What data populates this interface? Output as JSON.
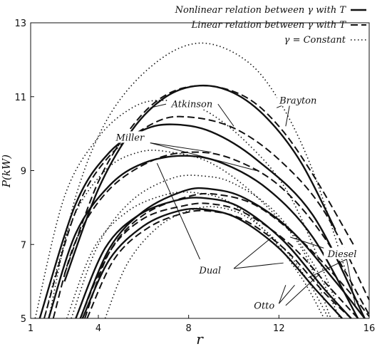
{
  "chart_data": {
    "type": "line",
    "title": "",
    "xlabel": "r",
    "ylabel": "P(kW)",
    "xlim": [
      1,
      16
    ],
    "ylim": [
      5,
      13
    ],
    "xticks": [
      1,
      4,
      8,
      12,
      16
    ],
    "yticks": [
      5,
      7,
      9,
      11,
      13
    ],
    "grid": false,
    "legend_position": "top-right",
    "legend": [
      {
        "label": "Nonlinear relation between γ with T",
        "style": "solid"
      },
      {
        "label": "Linear relation between γ with T",
        "style": "dashed"
      },
      {
        "label": "γ = Constant",
        "style": "dotted"
      }
    ],
    "series": [
      {
        "cycle": "Brayton",
        "style": "solid",
        "points": [
          [
            2.5,
            6.0
          ],
          [
            4,
            8.5
          ],
          [
            5.5,
            10.1
          ],
          [
            7,
            11.0
          ],
          [
            8.5,
            11.3
          ],
          [
            10,
            11.1
          ],
          [
            11.5,
            10.4
          ],
          [
            13,
            9.2
          ],
          [
            14.5,
            7.4
          ]
        ]
      },
      {
        "cycle": "Brayton",
        "style": "dashed",
        "points": [
          [
            2.5,
            6.2
          ],
          [
            4,
            8.7
          ],
          [
            5.5,
            10.2
          ],
          [
            7,
            11.05
          ],
          [
            8.7,
            11.3
          ],
          [
            10.5,
            11.0
          ],
          [
            12,
            10.2
          ],
          [
            13.5,
            8.9
          ],
          [
            15.3,
            7.0
          ]
        ]
      },
      {
        "cycle": "Brayton",
        "style": "dotted",
        "points": [
          [
            1.8,
            5.0
          ],
          [
            3,
            8.3
          ],
          [
            4.5,
            10.5
          ],
          [
            6.5,
            11.9
          ],
          [
            8.5,
            12.45
          ],
          [
            10.5,
            12.0
          ],
          [
            12,
            10.9
          ],
          [
            13.5,
            9.0
          ],
          [
            15,
            6.2
          ]
        ]
      },
      {
        "cycle": "Atkinson",
        "style": "solid",
        "points": [
          [
            1.4,
            5.0
          ],
          [
            3,
            8.1
          ],
          [
            4.5,
            9.5
          ],
          [
            6,
            10.1
          ],
          [
            7.3,
            10.25
          ],
          [
            9,
            10.05
          ],
          [
            11,
            9.3
          ],
          [
            13.5,
            7.8
          ],
          [
            15.8,
            5.0
          ]
        ]
      },
      {
        "cycle": "Atkinson",
        "style": "dashed",
        "points": [
          [
            1.6,
            5.0
          ],
          [
            3,
            7.9
          ],
          [
            4.5,
            9.4
          ],
          [
            6.5,
            10.3
          ],
          [
            8,
            10.45
          ],
          [
            10,
            10.15
          ],
          [
            12,
            9.3
          ],
          [
            14,
            7.9
          ],
          [
            16,
            5.5
          ]
        ]
      },
      {
        "cycle": "Atkinson",
        "style": "dotted",
        "points": [
          [
            1.2,
            5.0
          ],
          [
            2.5,
            8.3
          ],
          [
            4,
            9.9
          ],
          [
            5.5,
            10.7
          ],
          [
            6.8,
            10.9
          ],
          [
            8.5,
            10.7
          ],
          [
            10.5,
            9.8
          ],
          [
            12.5,
            8.3
          ],
          [
            14.5,
            5.5
          ]
        ]
      },
      {
        "cycle": "Miller",
        "style": "solid",
        "points": [
          [
            1.8,
            5.0
          ],
          [
            3,
            7.3
          ],
          [
            4.5,
            8.6
          ],
          [
            6,
            9.2
          ],
          [
            7.8,
            9.4
          ],
          [
            9.5,
            9.2
          ],
          [
            11.5,
            8.5
          ],
          [
            13.5,
            7.2
          ],
          [
            15.5,
            5.0
          ]
        ]
      },
      {
        "cycle": "Miller",
        "style": "dashed",
        "points": [
          [
            2.0,
            5.0
          ],
          [
            3,
            7.1
          ],
          [
            4.5,
            8.5
          ],
          [
            6.5,
            9.3
          ],
          [
            8.3,
            9.5
          ],
          [
            10,
            9.3
          ],
          [
            12,
            8.6
          ],
          [
            14,
            7.2
          ],
          [
            16,
            5.1
          ]
        ]
      },
      {
        "cycle": "Miller",
        "style": "dotted",
        "points": [
          [
            1.6,
            5.0
          ],
          [
            2.8,
            7.6
          ],
          [
            4.3,
            9.0
          ],
          [
            5.8,
            9.5
          ],
          [
            7.2,
            9.5
          ],
          [
            9,
            9.2
          ],
          [
            11,
            8.3
          ],
          [
            13,
            6.9
          ],
          [
            14.3,
            5.0
          ]
        ]
      },
      {
        "cycle": "Diesel",
        "style": "solid",
        "points": [
          [
            3.2,
            5.0
          ],
          [
            4.5,
            6.9
          ],
          [
            6,
            7.9
          ],
          [
            7.8,
            8.45
          ],
          [
            9,
            8.5
          ],
          [
            10.5,
            8.25
          ],
          [
            12.5,
            7.4
          ],
          [
            14.5,
            6.0
          ],
          [
            15.8,
            5.0
          ]
        ]
      },
      {
        "cycle": "Diesel",
        "style": "dashed",
        "points": [
          [
            3.4,
            5.0
          ],
          [
            4.5,
            6.8
          ],
          [
            6,
            7.8
          ],
          [
            8,
            8.3
          ],
          [
            9.3,
            8.35
          ],
          [
            11,
            8.05
          ],
          [
            13,
            7.1
          ],
          [
            15,
            5.8
          ],
          [
            16,
            5.05
          ]
        ]
      },
      {
        "cycle": "Diesel",
        "style": "dotted",
        "points": [
          [
            2.8,
            5.0
          ],
          [
            4,
            7.0
          ],
          [
            5.5,
            8.2
          ],
          [
            7.3,
            8.8
          ],
          [
            8.7,
            8.85
          ],
          [
            10,
            8.65
          ],
          [
            11.8,
            7.9
          ],
          [
            13.5,
            6.5
          ],
          [
            14.7,
            5.0
          ]
        ]
      },
      {
        "cycle": "Dual",
        "style": "solid",
        "points": [
          [
            3.0,
            5.0
          ],
          [
            4.3,
            6.9
          ],
          [
            5.8,
            7.8
          ],
          [
            7.5,
            8.2
          ],
          [
            8.8,
            8.25
          ],
          [
            10.3,
            8.0
          ],
          [
            12.2,
            7.1
          ],
          [
            14,
            5.8
          ],
          [
            15.2,
            5.0
          ]
        ]
      },
      {
        "cycle": "Dual",
        "style": "dashed",
        "points": [
          [
            3.2,
            5.0
          ],
          [
            4.5,
            6.8
          ],
          [
            6,
            7.7
          ],
          [
            7.8,
            8.05
          ],
          [
            9,
            8.1
          ],
          [
            10.5,
            7.85
          ],
          [
            12.5,
            7.0
          ],
          [
            14.3,
            5.8
          ],
          [
            15.5,
            5.0
          ]
        ]
      },
      {
        "cycle": "Dual",
        "style": "dotted",
        "points": [
          [
            2.6,
            5.0
          ],
          [
            3.8,
            6.9
          ],
          [
            5.3,
            7.9
          ],
          [
            7,
            8.35
          ],
          [
            8.3,
            8.4
          ],
          [
            9.8,
            8.15
          ],
          [
            11.5,
            7.3
          ],
          [
            13,
            6.1
          ],
          [
            14.0,
            5.0
          ]
        ]
      },
      {
        "cycle": "Otto",
        "style": "solid",
        "points": [
          [
            3.3,
            5.0
          ],
          [
            4.5,
            6.6
          ],
          [
            6,
            7.5
          ],
          [
            7.5,
            7.9
          ],
          [
            8.7,
            7.95
          ],
          [
            10.2,
            7.7
          ],
          [
            12,
            6.9
          ],
          [
            13.6,
            5.8
          ],
          [
            14.8,
            5.0
          ]
        ]
      },
      {
        "cycle": "Otto",
        "style": "dashed",
        "points": [
          [
            3.5,
            5.0
          ],
          [
            4.7,
            6.6
          ],
          [
            6.2,
            7.45
          ],
          [
            7.8,
            7.85
          ],
          [
            9,
            7.9
          ],
          [
            10.5,
            7.65
          ],
          [
            12.3,
            6.85
          ],
          [
            14,
            5.7
          ],
          [
            15.2,
            5.0
          ]
        ]
      },
      {
        "cycle": "Otto",
        "style": "dotted",
        "points": [
          [
            4.3,
            5.0
          ],
          [
            5.3,
            6.5
          ],
          [
            6.7,
            7.5
          ],
          [
            8.2,
            7.95
          ],
          [
            9.4,
            8.0
          ],
          [
            10.7,
            7.7
          ],
          [
            12.2,
            6.9
          ],
          [
            13.3,
            6.0
          ],
          [
            14.2,
            5.0
          ]
        ]
      }
    ],
    "annotations": [
      {
        "text": "Brayton",
        "x": 12.85,
        "y": 10.85
      },
      {
        "text": "Atkinson",
        "x": 8.15,
        "y": 10.75
      },
      {
        "text": "Miller",
        "x": 5.4,
        "y": 9.85
      },
      {
        "text": "Dual",
        "x": 8.95,
        "y": 6.25
      },
      {
        "text": "Diesel",
        "x": 14.8,
        "y": 6.7
      },
      {
        "text": "Otto",
        "x": 11.35,
        "y": 5.3
      }
    ],
    "leader_lines": [
      {
        "from": [
          12.5,
          10.85
        ],
        "to": [
          11.9,
          10.7
        ]
      },
      {
        "from": [
          12.5,
          10.85
        ],
        "to": [
          12.3,
          10.2
        ]
      },
      {
        "from": [
          7.0,
          10.8
        ],
        "to": [
          6.3,
          10.7
        ]
      },
      {
        "from": [
          9.3,
          10.8
        ],
        "to": [
          10.0,
          10.2
        ]
      },
      {
        "from": [
          5.0,
          9.85
        ],
        "to": [
          4.6,
          9.4
        ]
      },
      {
        "from": [
          6.3,
          9.75
        ],
        "to": [
          9.0,
          9.5
        ]
      },
      {
        "from": [
          6.3,
          9.75
        ],
        "to": [
          11.0,
          9.0
        ]
      },
      {
        "from": [
          10.0,
          6.35
        ],
        "to": [
          11.7,
          7.2
        ]
      },
      {
        "from": [
          10.0,
          6.35
        ],
        "to": [
          12.2,
          6.5
        ]
      },
      {
        "from": [
          8.5,
          6.6
        ],
        "to": [
          6.6,
          9.2
        ]
      },
      {
        "from": [
          14.5,
          6.8
        ],
        "to": [
          12.5,
          7.2
        ]
      },
      {
        "from": [
          15.0,
          6.6
        ],
        "to": [
          13.3,
          6.1
        ]
      },
      {
        "from": [
          15.0,
          6.6
        ],
        "to": [
          15.4,
          5.3
        ]
      },
      {
        "from": [
          12.0,
          5.4
        ],
        "to": [
          12.3,
          5.9
        ]
      },
      {
        "from": [
          12.0,
          5.4
        ],
        "to": [
          12.7,
          5.9
        ]
      },
      {
        "from": [
          12.3,
          5.35
        ],
        "to": [
          13.8,
          6.2
        ]
      }
    ]
  }
}
